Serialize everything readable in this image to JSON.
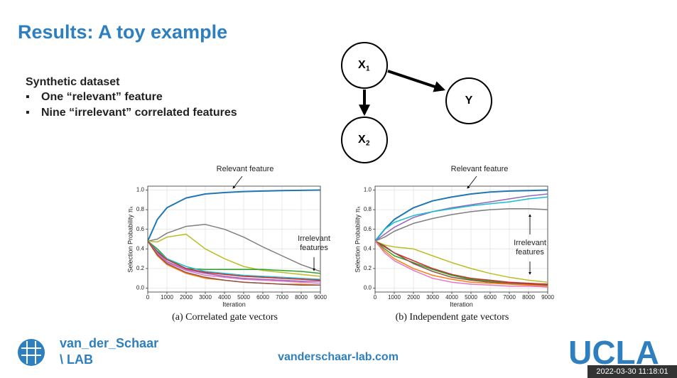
{
  "slide": {
    "title": "Results: A toy example",
    "heading": "Synthetic dataset",
    "bullets": [
      "One “relevant” feature",
      "Nine “irrelevant” correlated features"
    ],
    "nodes": [
      {
        "label": "X",
        "subscript": "1"
      },
      {
        "label": "Y"
      },
      {
        "label": "X",
        "subscript": "2"
      }
    ],
    "lab_name": [
      "van_der_Schaar",
      "\\ LAB"
    ],
    "website": "vanderschaar-lab.com",
    "university": "UCLA",
    "timestamp": "2022-03-30 11:18:01"
  },
  "chart_data": [
    {
      "type": "line",
      "title": "(a) Correlated gate vectors",
      "x_label": "Iteration",
      "y_label": "Selection Probability πₖ",
      "annotations": [
        [
          "Relevant feature"
        ],
        [
          "Irrelevant",
          "features"
        ]
      ],
      "x": [
        0,
        500,
        1000,
        2000,
        3000,
        4000,
        5000,
        6000,
        7000,
        8000,
        9000
      ],
      "xlim": [
        0,
        9000
      ],
      "ylim": [
        -0.04,
        1.04
      ],
      "xticks": [
        0,
        1000,
        2000,
        3000,
        4000,
        5000,
        6000,
        7000,
        8000,
        9000
      ],
      "yticks": [
        {
          "value": 0,
          "label": "0.0"
        },
        0.2,
        0.4,
        0.6,
        0.8,
        {
          "value": 1,
          "label": "1.0"
        }
      ],
      "grid": true,
      "series": [
        {
          "color": "#1f77b4",
          "values": [
            0.48,
            0.7,
            0.82,
            0.92,
            0.96,
            0.975,
            0.985,
            0.99,
            0.995,
            0.997,
            1.0
          ]
        },
        {
          "color": "#7f7f7f",
          "values": [
            0.48,
            0.5,
            0.56,
            0.63,
            0.65,
            0.6,
            0.52,
            0.42,
            0.33,
            0.24,
            0.17
          ]
        },
        {
          "color": "#bcbd22",
          "values": [
            0.48,
            0.47,
            0.52,
            0.55,
            0.4,
            0.3,
            0.22,
            0.18,
            0.16,
            0.14,
            0.12
          ]
        },
        {
          "color": "#2ca02c",
          "values": [
            0.48,
            0.4,
            0.3,
            0.2,
            0.19,
            0.19,
            0.19,
            0.19,
            0.18,
            0.17,
            0.15
          ]
        },
        {
          "color": "#17becf",
          "values": [
            0.48,
            0.38,
            0.3,
            0.22,
            0.17,
            0.15,
            0.13,
            0.12,
            0.11,
            0.1,
            0.09
          ]
        },
        {
          "color": "#d62728",
          "values": [
            0.48,
            0.37,
            0.29,
            0.2,
            0.16,
            0.14,
            0.12,
            0.11,
            0.1,
            0.09,
            0.08
          ]
        },
        {
          "color": "#9467bd",
          "values": [
            0.48,
            0.36,
            0.27,
            0.19,
            0.15,
            0.12,
            0.1,
            0.09,
            0.08,
            0.07,
            0.07
          ]
        },
        {
          "color": "#e377c2",
          "values": [
            0.48,
            0.35,
            0.26,
            0.18,
            0.13,
            0.11,
            0.09,
            0.08,
            0.07,
            0.06,
            0.05
          ]
        },
        {
          "color": "#ff7f0e",
          "values": [
            0.48,
            0.33,
            0.24,
            0.15,
            0.1,
            0.08,
            0.06,
            0.05,
            0.04,
            0.04,
            0.03
          ]
        },
        {
          "color": "#8c564b",
          "values": [
            0.48,
            0.34,
            0.25,
            0.16,
            0.11,
            0.08,
            0.06,
            0.05,
            0.04,
            0.03,
            0.03
          ]
        }
      ]
    },
    {
      "type": "line",
      "title": "(b) Independent gate vectors",
      "x_label": "Iteration",
      "y_label": "Selection Probability πₖ",
      "annotations": [
        [
          "Relevant feature"
        ],
        [
          "Irrelevant",
          "features"
        ]
      ],
      "x": [
        0,
        500,
        1000,
        2000,
        3000,
        4000,
        5000,
        6000,
        7000,
        8000,
        9000
      ],
      "xlim": [
        0,
        9000
      ],
      "ylim": [
        -0.04,
        1.04
      ],
      "xticks": [
        0,
        1000,
        2000,
        3000,
        4000,
        5000,
        6000,
        7000,
        8000,
        9000
      ],
      "yticks": [
        {
          "value": 0,
          "label": "0.0"
        },
        0.2,
        0.4,
        0.6,
        0.8,
        {
          "value": 1,
          "label": "1.0"
        }
      ],
      "grid": true,
      "series": [
        {
          "color": "#1f77b4",
          "values": [
            0.48,
            0.6,
            0.7,
            0.82,
            0.89,
            0.93,
            0.96,
            0.98,
            0.99,
            0.995,
            1.0
          ]
        },
        {
          "color": "#9467bd",
          "values": [
            0.48,
            0.55,
            0.62,
            0.72,
            0.78,
            0.82,
            0.85,
            0.88,
            0.91,
            0.94,
            0.96
          ]
        },
        {
          "color": "#17becf",
          "values": [
            0.48,
            0.6,
            0.67,
            0.74,
            0.78,
            0.81,
            0.84,
            0.86,
            0.88,
            0.91,
            0.93
          ]
        },
        {
          "color": "#7f7f7f",
          "values": [
            0.48,
            0.52,
            0.58,
            0.66,
            0.71,
            0.75,
            0.78,
            0.8,
            0.81,
            0.81,
            0.8
          ]
        },
        {
          "color": "#bcbd22",
          "values": [
            0.48,
            0.44,
            0.42,
            0.4,
            0.33,
            0.26,
            0.2,
            0.15,
            0.11,
            0.08,
            0.06
          ]
        },
        {
          "color": "#d62728",
          "values": [
            0.48,
            0.42,
            0.36,
            0.28,
            0.2,
            0.14,
            0.1,
            0.08,
            0.06,
            0.05,
            0.04
          ]
        },
        {
          "color": "#2ca02c",
          "values": [
            0.48,
            0.4,
            0.33,
            0.26,
            0.19,
            0.13,
            0.09,
            0.07,
            0.05,
            0.04,
            0.03
          ]
        },
        {
          "color": "#8c564b",
          "values": [
            0.48,
            0.43,
            0.36,
            0.25,
            0.17,
            0.11,
            0.08,
            0.06,
            0.05,
            0.04,
            0.03
          ]
        },
        {
          "color": "#ff7f0e",
          "values": [
            0.48,
            0.38,
            0.3,
            0.2,
            0.13,
            0.09,
            0.06,
            0.05,
            0.04,
            0.03,
            0.02
          ]
        },
        {
          "color": "#e377c2",
          "values": [
            0.48,
            0.36,
            0.28,
            0.18,
            0.1,
            0.06,
            0.04,
            0.03,
            0.02,
            0.02,
            0.01
          ]
        }
      ]
    }
  ]
}
